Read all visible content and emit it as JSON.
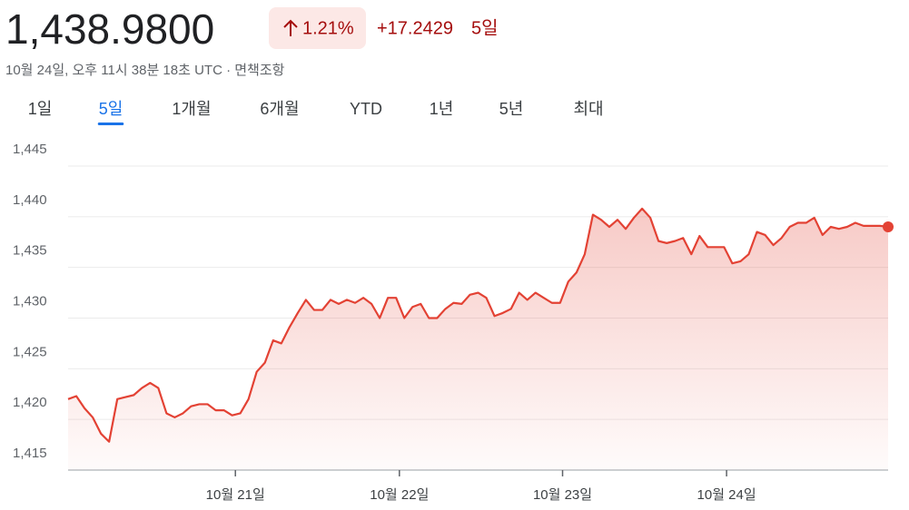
{
  "header": {
    "price": "1,438.9800",
    "change_percent": "1.21%",
    "change_amount": "+17.2429",
    "period": "5일",
    "timestamp": "10월 24일, 오후 11시 38분 18초 UTC · 면책조항"
  },
  "tabs": [
    "1일",
    "5일",
    "1개월",
    "6개월",
    "YTD",
    "1년",
    "5년",
    "최대"
  ],
  "active_tab": 1,
  "chart_data": {
    "type": "line",
    "color": "#e34234",
    "grid": true,
    "values": [
      1422.0,
      1422.3,
      1421.1,
      1420.2,
      1418.6,
      1417.8,
      1422.0,
      1422.2,
      1422.4,
      1423.1,
      1423.6,
      1423.1,
      1420.6,
      1420.2,
      1420.6,
      1421.3,
      1421.5,
      1421.5,
      1420.9,
      1420.9,
      1420.4,
      1420.6,
      1422.0,
      1424.7,
      1425.6,
      1427.8,
      1427.5,
      1429.1,
      1430.5,
      1431.8,
      1430.8,
      1430.8,
      1431.8,
      1431.4,
      1431.8,
      1431.5,
      1432.0,
      1431.4,
      1430.0,
      1432.0,
      1432.0,
      1430.0,
      1431.1,
      1431.4,
      1430.0,
      1430.0,
      1430.9,
      1431.5,
      1431.4,
      1432.3,
      1432.5,
      1432.0,
      1430.2,
      1430.5,
      1430.9,
      1432.5,
      1431.8,
      1432.5,
      1432.0,
      1431.5,
      1431.5,
      1433.6,
      1434.5,
      1436.3,
      1440.2,
      1439.7,
      1439.0,
      1439.7,
      1438.8,
      1439.9,
      1440.8,
      1439.9,
      1437.6,
      1437.4,
      1437.6,
      1437.9,
      1436.3,
      1438.1,
      1437.0,
      1437.0,
      1437.0,
      1435.4,
      1435.6,
      1436.3,
      1438.5,
      1438.2,
      1437.2,
      1437.9,
      1439.0,
      1439.4,
      1439.4,
      1439.9,
      1438.2,
      1439.0,
      1438.8,
      1439.0,
      1439.4,
      1439.1,
      1439.1,
      1439.1,
      1439.0
    ],
    "xlim": [
      0,
      100
    ],
    "xticks": [
      {
        "value": 20.4,
        "label": "10월 21일"
      },
      {
        "value": 40.4,
        "label": "10월 22일"
      },
      {
        "value": 60.3,
        "label": "10월 23일"
      },
      {
        "value": 80.3,
        "label": "10월 24일"
      }
    ],
    "ylim": [
      1415,
      1445
    ],
    "yticks": [
      {
        "value": 1415,
        "label": "1,415"
      },
      {
        "value": 1420,
        "label": "1,420"
      },
      {
        "value": 1425,
        "label": "1,425"
      },
      {
        "value": 1430,
        "label": "1,430"
      },
      {
        "value": 1435,
        "label": "1,435"
      },
      {
        "value": 1440,
        "label": "1,440"
      },
      {
        "value": 1445,
        "label": "1,445"
      }
    ]
  }
}
